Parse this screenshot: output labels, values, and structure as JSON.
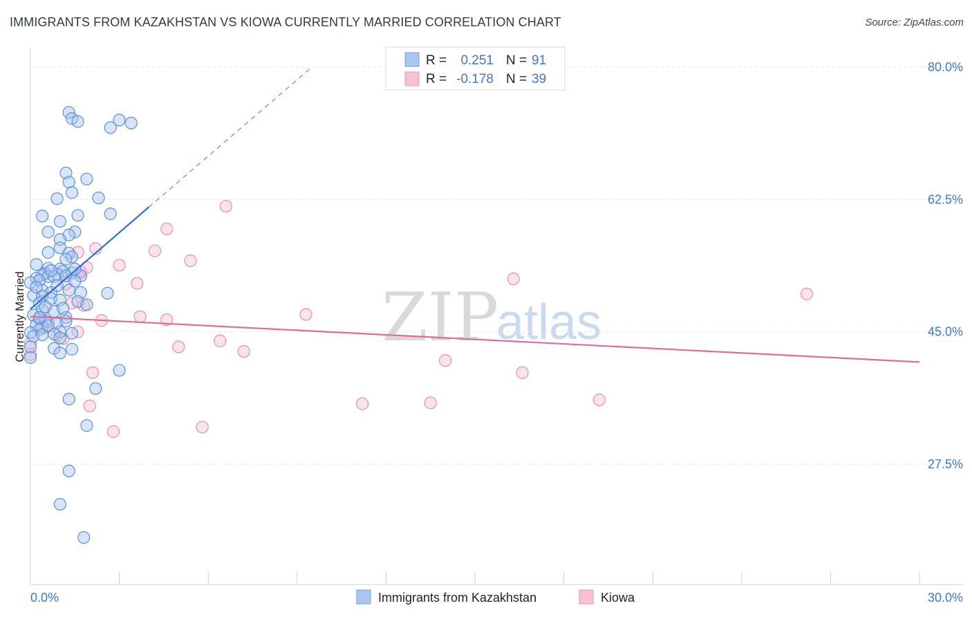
{
  "title": "IMMIGRANTS FROM KAZAKHSTAN VS KIOWA CURRENTLY MARRIED CORRELATION CHART",
  "source": "Source: ZipAtlas.com",
  "watermark": {
    "zip": "ZIP",
    "atlas": "atlas"
  },
  "colors": {
    "blue": "#5b8fd9",
    "blue_fill": "#a9c6ef",
    "pink": "#e67aa0",
    "pink_fill": "#f6c1d3",
    "tick": "#3e78c8"
  },
  "legend": {
    "r_label": "R =",
    "n_label": "N =",
    "rows": [
      {
        "r": "0.251",
        "n": "91"
      },
      {
        "r": "-0.178",
        "n": "39"
      }
    ]
  },
  "chart_data": {
    "type": "scatter",
    "title": "IMMIGRANTS FROM KAZAKHSTAN VS KIOWA CURRENTLY MARRIED CORRELATION CHART",
    "xlabel": "",
    "ylabel": "Currently Married",
    "xlim": [
      0,
      30
    ],
    "ylim": [
      10,
      83
    ],
    "x_tick_labels": [
      "0.0%",
      "30.0%"
    ],
    "y_ticks": [
      27.5,
      45.0,
      62.5,
      80.0
    ],
    "y_tick_labels": [
      "27.5%",
      "45.0%",
      "62.5%",
      "80.0%"
    ],
    "grid": true,
    "series": [
      {
        "name": "Immigrants from Kazakhstan",
        "r": 0.251,
        "n": 91,
        "trend": {
          "x0": 0.0,
          "y0": 48.0,
          "x1": 4.0,
          "y1": 61.5,
          "dashed_to_x": 9.5,
          "dashed_to_y": 80.0
        },
        "points": [
          [
            1.3,
            74.0
          ],
          [
            1.4,
            73.2
          ],
          [
            1.6,
            72.8
          ],
          [
            2.7,
            72.0
          ],
          [
            3.0,
            73.0
          ],
          [
            3.4,
            72.6
          ],
          [
            1.2,
            66.0
          ],
          [
            1.3,
            64.8
          ],
          [
            1.9,
            65.2
          ],
          [
            1.4,
            63.4
          ],
          [
            0.9,
            62.6
          ],
          [
            2.3,
            62.7
          ],
          [
            0.4,
            60.3
          ],
          [
            1.6,
            60.4
          ],
          [
            2.7,
            60.6
          ],
          [
            1.0,
            59.6
          ],
          [
            0.6,
            58.2
          ],
          [
            1.5,
            58.2
          ],
          [
            1.3,
            57.8
          ],
          [
            1.0,
            57.2
          ],
          [
            1.0,
            56.1
          ],
          [
            0.6,
            55.5
          ],
          [
            1.3,
            55.4
          ],
          [
            1.4,
            54.9
          ],
          [
            1.2,
            54.6
          ],
          [
            0.2,
            53.9
          ],
          [
            0.6,
            53.4
          ],
          [
            1.0,
            53.3
          ],
          [
            1.1,
            53.0
          ],
          [
            1.4,
            52.8
          ],
          [
            0.5,
            52.7
          ],
          [
            0.9,
            52.6
          ],
          [
            1.2,
            52.4
          ],
          [
            0.4,
            52.5
          ],
          [
            0.2,
            52.1
          ],
          [
            0.6,
            52.3
          ],
          [
            0.8,
            52.3
          ],
          [
            1.7,
            52.4
          ],
          [
            0.3,
            51.8
          ],
          [
            0.0,
            51.5
          ],
          [
            1.5,
            51.7
          ],
          [
            0.4,
            50.5
          ],
          [
            0.7,
            50.2
          ],
          [
            1.7,
            50.2
          ],
          [
            2.6,
            50.1
          ],
          [
            0.1,
            49.8
          ],
          [
            0.4,
            49.7
          ],
          [
            0.7,
            49.4
          ],
          [
            1.0,
            49.2
          ],
          [
            1.6,
            49.0
          ],
          [
            0.3,
            48.8
          ],
          [
            1.9,
            48.6
          ],
          [
            0.4,
            47.9
          ],
          [
            0.8,
            47.7
          ],
          [
            0.1,
            47.2
          ],
          [
            1.2,
            46.9
          ],
          [
            0.3,
            46.7
          ],
          [
            0.5,
            46.4
          ],
          [
            0.9,
            46.2
          ],
          [
            0.2,
            45.9
          ],
          [
            0.4,
            45.6
          ],
          [
            0.3,
            45.3
          ],
          [
            1.0,
            45.0
          ],
          [
            1.4,
            44.8
          ],
          [
            0.8,
            44.7
          ],
          [
            0.0,
            44.9
          ],
          [
            0.1,
            44.4
          ],
          [
            0.4,
            44.6
          ],
          [
            1.0,
            44.2
          ],
          [
            0.0,
            43.0
          ],
          [
            0.8,
            42.8
          ],
          [
            1.4,
            42.7
          ],
          [
            1.0,
            42.2
          ],
          [
            0.0,
            41.6
          ],
          [
            3.0,
            39.9
          ],
          [
            2.2,
            37.5
          ],
          [
            1.3,
            36.1
          ],
          [
            1.9,
            32.6
          ],
          [
            1.3,
            26.6
          ],
          [
            1.0,
            22.2
          ],
          [
            1.8,
            17.8
          ],
          [
            0.5,
            48.3
          ],
          [
            1.1,
            48.1
          ],
          [
            0.6,
            45.8
          ],
          [
            0.9,
            51.1
          ],
          [
            1.3,
            50.5
          ],
          [
            0.2,
            50.9
          ],
          [
            0.7,
            53.1
          ],
          [
            1.5,
            53.3
          ],
          [
            0.3,
            46.9
          ],
          [
            1.2,
            46.4
          ]
        ]
      },
      {
        "name": "Kiowa",
        "r": -0.178,
        "n": 39,
        "trend": {
          "x0": 0.0,
          "y0": 47.0,
          "x1": 30.0,
          "y1": 41.0
        },
        "points": [
          [
            0.0,
            42.0
          ],
          [
            0.0,
            43.5
          ],
          [
            0.5,
            45.5
          ],
          [
            0.9,
            44.5
          ],
          [
            1.1,
            44.1
          ],
          [
            1.2,
            51.3
          ],
          [
            1.6,
            45.0
          ],
          [
            1.4,
            48.8
          ],
          [
            1.6,
            55.5
          ],
          [
            1.7,
            52.8
          ],
          [
            1.7,
            53.0
          ],
          [
            1.9,
            53.5
          ],
          [
            2.2,
            56.0
          ],
          [
            2.1,
            39.6
          ],
          [
            2.0,
            35.2
          ],
          [
            2.4,
            46.5
          ],
          [
            2.8,
            31.8
          ],
          [
            3.0,
            53.8
          ],
          [
            3.6,
            51.4
          ],
          [
            3.7,
            47.0
          ],
          [
            4.2,
            55.7
          ],
          [
            4.6,
            58.6
          ],
          [
            4.6,
            46.6
          ],
          [
            5.0,
            43.0
          ],
          [
            5.4,
            54.4
          ],
          [
            5.8,
            32.4
          ],
          [
            6.4,
            43.8
          ],
          [
            6.6,
            61.6
          ],
          [
            7.2,
            42.4
          ],
          [
            9.3,
            47.3
          ],
          [
            11.2,
            35.5
          ],
          [
            13.5,
            35.6
          ],
          [
            14.0,
            41.2
          ],
          [
            16.3,
            52.0
          ],
          [
            16.6,
            39.6
          ],
          [
            19.2,
            36.0
          ],
          [
            26.2,
            50.0
          ],
          [
            0.6,
            46.3
          ],
          [
            1.8,
            48.5
          ]
        ]
      }
    ]
  }
}
